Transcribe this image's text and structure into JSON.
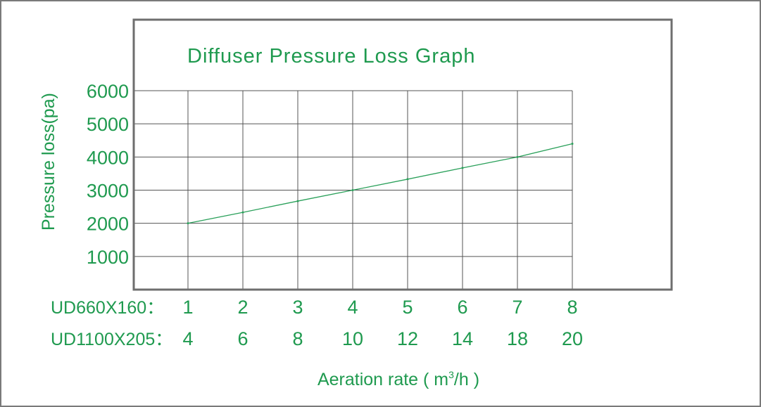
{
  "chart_data": {
    "type": "line",
    "title": "Diffuser Pressure Loss Graph",
    "ylabel": "Pressure loss(pa)",
    "xlabel_prefix": "Aeration rate ( m",
    "xlabel_sup": "3",
    "xlabel_suffix": "/h )",
    "ylim": [
      0,
      6000
    ],
    "yticks": [
      "1000",
      "2000",
      "3000",
      "4000",
      "5000",
      "6000"
    ],
    "x_rows": [
      {
        "label": "UD660X160：",
        "ticks": [
          "1",
          "2",
          "3",
          "4",
          "5",
          "6",
          "7",
          "8"
        ]
      },
      {
        "label": "UD1100X205：",
        "ticks": [
          "4",
          "6",
          "8",
          "10",
          "12",
          "14",
          "18",
          "20"
        ]
      }
    ],
    "grid": true,
    "series": [
      {
        "x": [
          1,
          2,
          3,
          4,
          5,
          6,
          7,
          8
        ],
        "values": [
          2000,
          2330,
          2670,
          3000,
          3330,
          3670,
          4000,
          4400
        ]
      }
    ],
    "colors": {
      "text": "#1f9a4f",
      "line": "#2aa05a",
      "grid": "#555555",
      "border": "#6e6e6e"
    }
  }
}
